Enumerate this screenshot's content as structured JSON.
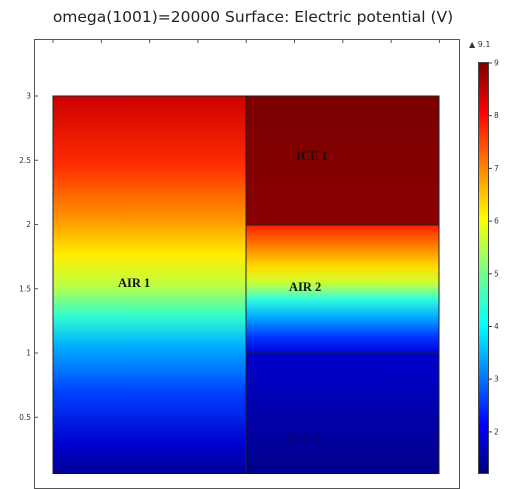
{
  "title": "omega(1001)=20000  Surface: Electric potential (V)",
  "chart_data": {
    "type": "heatmap",
    "title": "omega(1001)=20000  Surface: Electric potential (V)",
    "quantity": "Electric potential",
    "unit": "V",
    "y_ticks": [
      3,
      2.5,
      2,
      1.5,
      1,
      0.5
    ],
    "y_tick_labels": [
      "3",
      "2.5",
      "2",
      "1.5",
      "1",
      "0.5"
    ],
    "ylim": [
      0.2,
      3.4
    ],
    "regions": [
      "AIR 1",
      "AIR 2",
      "ICE 1",
      "ICE 2"
    ],
    "colorbar": {
      "max_label": "▲ 9.1",
      "ticks": [
        9,
        8,
        7,
        6,
        5,
        4,
        3,
        2
      ],
      "tick_labels": [
        "9",
        "8",
        "7",
        "6",
        "5",
        "4",
        "3",
        "2"
      ],
      "colormap": "rainbow (blue low, dark red high)",
      "range": [
        1,
        9.1
      ]
    }
  }
}
